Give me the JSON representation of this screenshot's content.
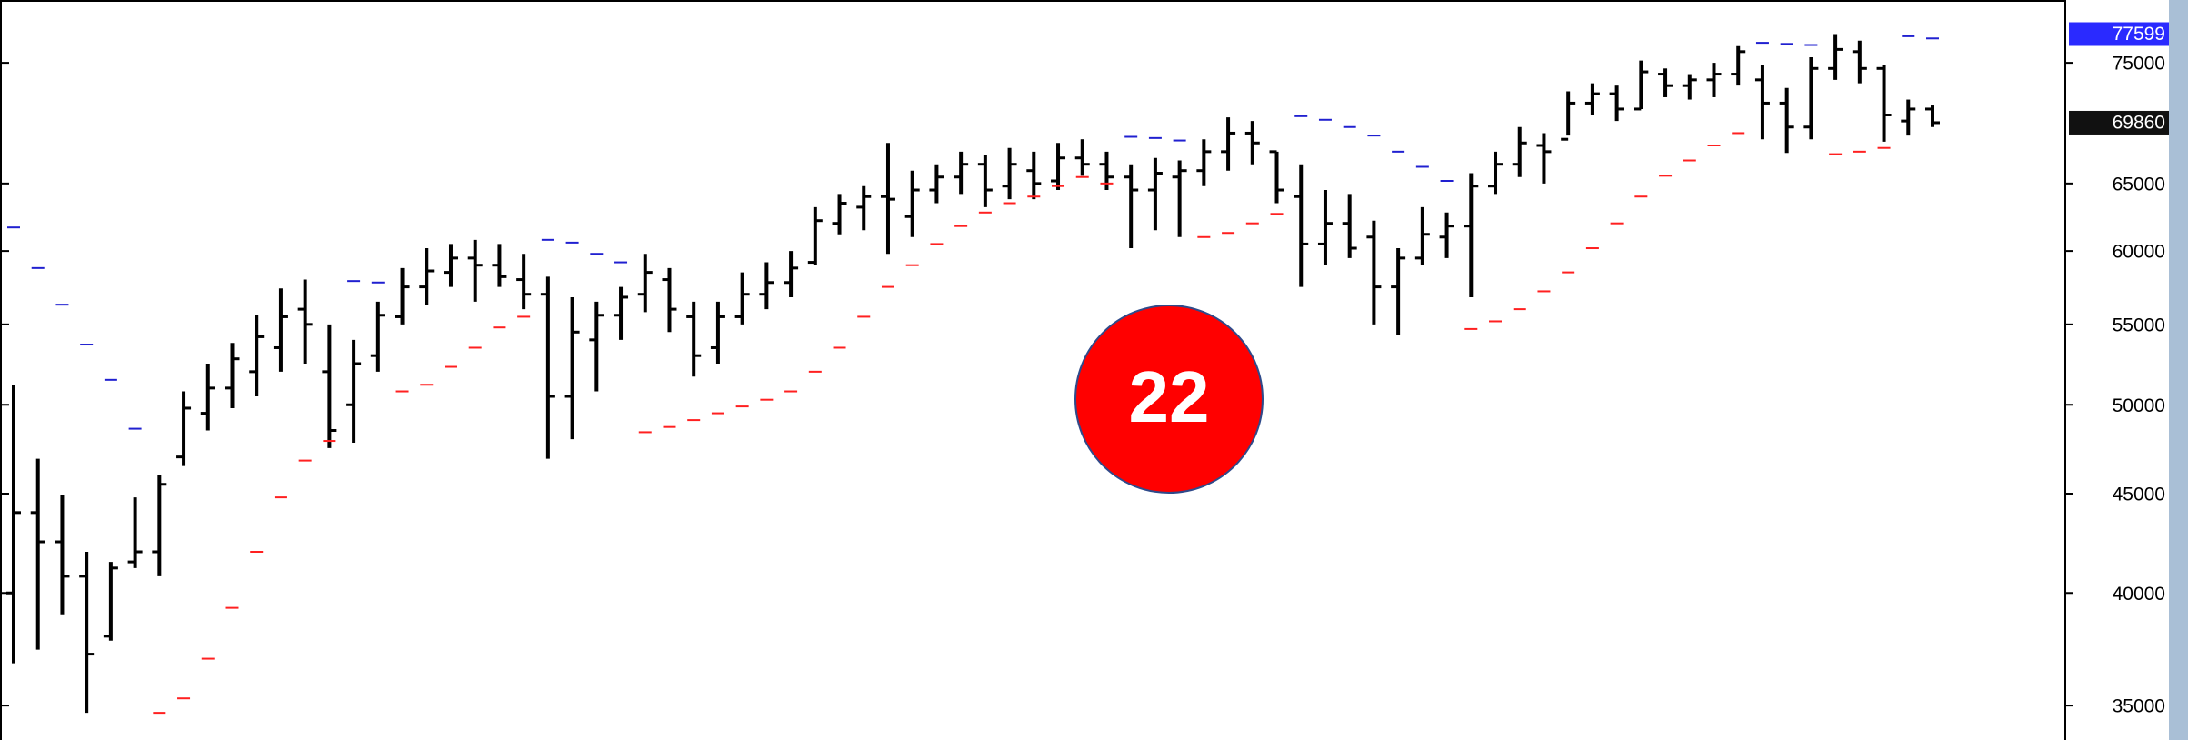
{
  "chart_data": {
    "type": "ohlc",
    "log_scale": true,
    "ylim": [
      33600,
      80800
    ],
    "yticks": [
      35000,
      40000,
      45000,
      50000,
      55000,
      60000,
      65000,
      75000
    ],
    "bar_color": "#000000",
    "open": [
      40000,
      44000,
      42500,
      40800,
      38000,
      41500,
      42000,
      47000,
      49500,
      51000,
      52000,
      53500,
      56000,
      52000,
      50000,
      53000,
      55500,
      57500,
      58500,
      59500,
      59000,
      58000,
      57000,
      50500,
      54000,
      55600,
      57000,
      58000,
      55500,
      53500,
      55500,
      57000,
      57800,
      59200,
      62000,
      63200,
      64000,
      62500,
      64500,
      65500,
      66500,
      64800,
      66000,
      65200,
      67000,
      66500,
      65500,
      64500,
      65500,
      66000,
      67500,
      69000,
      67500,
      64000,
      60500,
      62000,
      61000,
      57500,
      59500,
      61000,
      61800,
      64800,
      66500,
      68000,
      68500,
      71500,
      72300,
      71000,
      74000,
      73000,
      73500,
      74000,
      73500,
      71500,
      69500,
      74500,
      76000,
      74500,
      70000,
      71000
    ],
    "high": [
      51200,
      46900,
      44900,
      42000,
      41500,
      44800,
      46000,
      50800,
      52500,
      53800,
      55600,
      57400,
      58000,
      55000,
      54000,
      56500,
      58800,
      60200,
      60500,
      60800,
      60500,
      59800,
      58200,
      56800,
      56500,
      57500,
      59800,
      58800,
      56500,
      56500,
      58500,
      59200,
      60000,
      63200,
      64200,
      64800,
      68200,
      66000,
      66500,
      67500,
      67200,
      67800,
      67500,
      68200,
      68500,
      67500,
      66500,
      67000,
      66800,
      68500,
      70300,
      70000,
      67500,
      66500,
      64500,
      64200,
      62200,
      60200,
      63200,
      62800,
      65800,
      67500,
      69500,
      69000,
      72500,
      73200,
      73000,
      75200,
      74500,
      74000,
      75000,
      76500,
      74800,
      72800,
      75500,
      77600,
      77000,
      74800,
      71800,
      71300
    ],
    "low": [
      36800,
      37400,
      39000,
      34700,
      37800,
      41200,
      40800,
      46500,
      48500,
      49800,
      50500,
      52000,
      52500,
      47500,
      47800,
      52000,
      55000,
      56300,
      57500,
      56500,
      57500,
      56000,
      46900,
      48000,
      50800,
      54000,
      55800,
      54500,
      51700,
      52500,
      55000,
      56000,
      56800,
      59000,
      61200,
      61500,
      59800,
      61000,
      63500,
      64200,
      63200,
      63800,
      63800,
      64500,
      65600,
      64500,
      60200,
      61500,
      61000,
      64800,
      66000,
      66500,
      63500,
      57500,
      59000,
      59500,
      55000,
      54300,
      59000,
      59500,
      56800,
      64200,
      65500,
      65000,
      68800,
      70500,
      70000,
      71000,
      72000,
      71800,
      72000,
      73000,
      68500,
      67400,
      68500,
      73500,
      73200,
      68300,
      68800,
      69500
    ],
    "close": [
      44000,
      42500,
      40800,
      37200,
      41200,
      42000,
      45500,
      49800,
      51000,
      52800,
      54200,
      55500,
      55000,
      48500,
      52500,
      55600,
      57500,
      58600,
      59500,
      59000,
      58200,
      57000,
      50500,
      54500,
      55600,
      56800,
      58500,
      56000,
      53000,
      55500,
      57000,
      57800,
      58800,
      62200,
      63500,
      64000,
      63800,
      64500,
      65500,
      66500,
      64500,
      66500,
      65000,
      67000,
      66500,
      65500,
      64500,
      65800,
      66000,
      67500,
      69000,
      68200,
      64500,
      60500,
      62000,
      60200,
      57500,
      59500,
      61200,
      61800,
      64800,
      66500,
      68200,
      67500,
      71500,
      72300,
      71000,
      74200,
      73000,
      73500,
      74000,
      76000,
      71500,
      69500,
      74500,
      76200,
      74500,
      70500,
      71000,
      69860
    ],
    "sar_series": [
      {
        "color": "#ff2020",
        "values": [
          null,
          null,
          null,
          null,
          null,
          null,
          34700,
          35300,
          37000,
          39300,
          42000,
          44800,
          46800,
          47900,
          null,
          null,
          50800,
          51200,
          52300,
          53500,
          54800,
          55500,
          null,
          null,
          null,
          null,
          48400,
          48700,
          49100,
          49500,
          49900,
          50300,
          50800,
          52000,
          53500,
          55500,
          57500,
          59000,
          60500,
          61800,
          62800,
          63500,
          64000,
          64800,
          65500,
          65000,
          null,
          null,
          null,
          61000,
          61300,
          62000,
          62700,
          null,
          null,
          null,
          null,
          null,
          null,
          null,
          54700,
          55200,
          56000,
          57200,
          58500,
          60200,
          62000,
          64000,
          65600,
          66800,
          68000,
          69000,
          null,
          null,
          null,
          67300,
          67500,
          67800,
          null,
          null
        ]
      },
      {
        "color": "#2020d0",
        "values": [
          61700,
          58800,
          56300,
          53700,
          51500,
          48600,
          null,
          null,
          null,
          null,
          null,
          null,
          null,
          null,
          57900,
          57800,
          null,
          null,
          null,
          null,
          null,
          null,
          60800,
          60600,
          59800,
          59200,
          null,
          null,
          null,
          null,
          null,
          null,
          null,
          null,
          null,
          null,
          null,
          null,
          null,
          null,
          null,
          null,
          null,
          null,
          null,
          null,
          68700,
          68600,
          68400,
          null,
          null,
          null,
          null,
          70400,
          70100,
          69500,
          68800,
          67500,
          66300,
          65200,
          null,
          null,
          null,
          null,
          null,
          null,
          null,
          null,
          null,
          null,
          null,
          null,
          76800,
          76700,
          76600,
          null,
          null,
          null,
          77400,
          77200
        ]
      }
    ],
    "price_labels": [
      {
        "value": 77599,
        "color": "#2a2aff"
      },
      {
        "value": 69860,
        "color": "#111111"
      }
    ],
    "badge": "22"
  }
}
